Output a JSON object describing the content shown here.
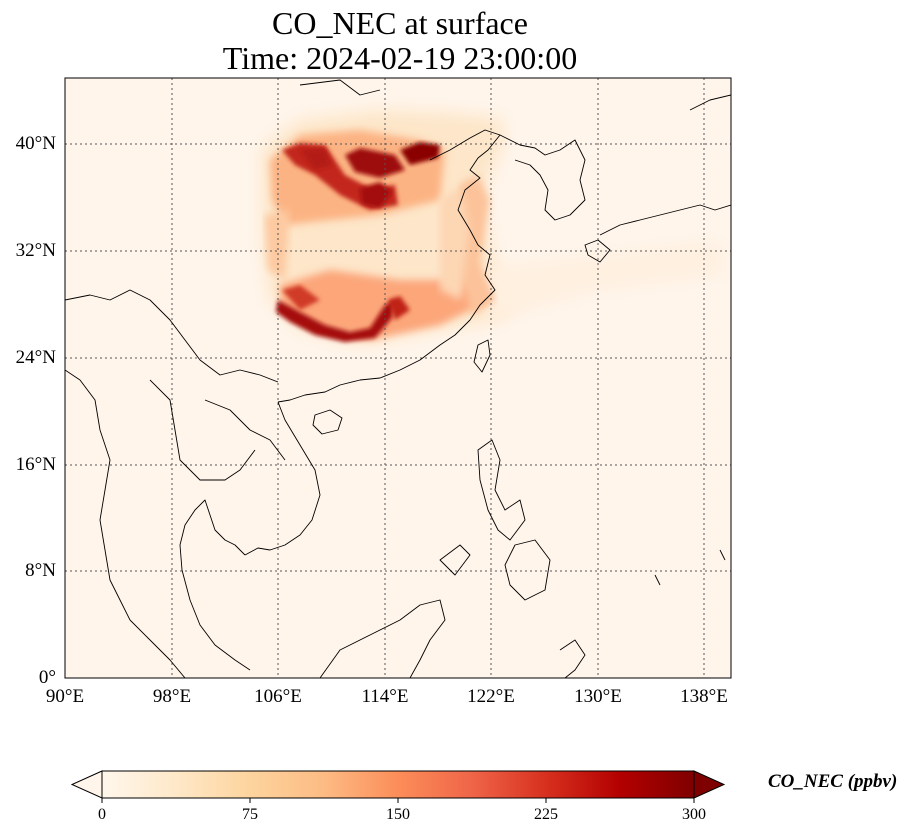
{
  "figure": {
    "title_line1": "CO_NEC at surface",
    "title_line2": "Time: 2024-02-19 23:00:00"
  },
  "map": {
    "projection": "PlateCarree",
    "lon_range": [
      90,
      140
    ],
    "lat_range": [
      0,
      45
    ],
    "gridlines": "dotted",
    "lat_ticks": [
      "0°",
      "8°N",
      "16°N",
      "24°N",
      "32°N",
      "40°N"
    ],
    "lon_ticks": [
      "90°E",
      "98°E",
      "106°E",
      "114°E",
      "122°E",
      "130°E",
      "138°E"
    ],
    "coastlines": true,
    "borders": true,
    "background_color": "#fff5eb"
  },
  "colorbar": {
    "label": "CO_NEC (ppbv)",
    "colormap": "OrRd",
    "range": [
      0,
      300
    ],
    "extend": "both",
    "ticks": [
      "0",
      "75",
      "150",
      "225",
      "300"
    ]
  }
}
